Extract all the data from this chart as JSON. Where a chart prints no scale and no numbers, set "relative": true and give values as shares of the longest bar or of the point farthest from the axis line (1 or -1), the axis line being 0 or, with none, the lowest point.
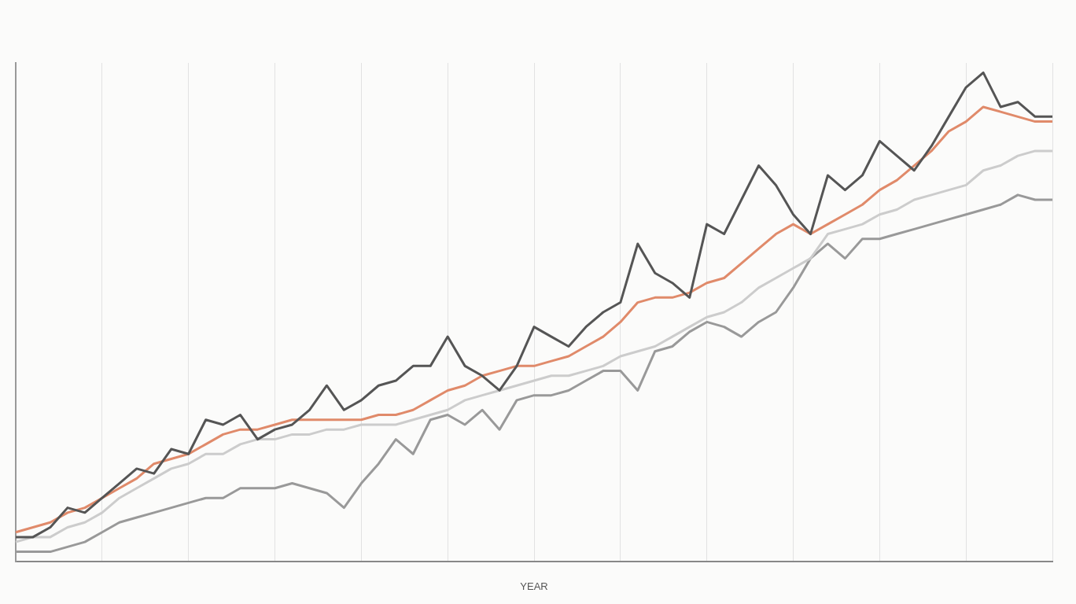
{
  "chart_data": {
    "type": "line",
    "xlabel": "YEAR",
    "relative": true,
    "grid": "x",
    "legend": false,
    "marker": "none",
    "line_style": "solid",
    "categories": [
      null,
      null,
      null,
      null,
      null,
      null,
      null,
      null,
      null,
      null,
      null,
      null,
      null,
      null,
      null,
      null,
      null,
      null,
      null,
      null,
      null,
      null,
      null,
      null,
      null,
      null,
      null,
      null,
      null,
      null,
      null,
      null,
      null,
      null,
      null,
      null,
      null,
      null,
      null,
      null,
      null,
      null,
      null,
      null,
      null,
      null,
      null,
      null,
      null,
      null,
      null,
      null,
      null,
      null,
      null,
      null,
      null,
      null,
      null,
      null,
      null
    ],
    "series": [
      {
        "color": "#555555",
        "values": [
          0.05,
          0.05,
          0.07,
          0.11,
          0.1,
          0.13,
          0.16,
          0.19,
          0.18,
          0.23,
          0.22,
          0.29,
          0.28,
          0.3,
          0.25,
          0.27,
          0.28,
          0.31,
          0.36,
          0.31,
          0.33,
          0.36,
          0.37,
          0.4,
          0.4,
          0.46,
          0.4,
          0.38,
          0.35,
          0.4,
          0.48,
          0.46,
          0.44,
          0.48,
          0.51,
          0.53,
          0.65,
          0.59,
          0.57,
          0.54,
          0.69,
          0.67,
          0.74,
          0.81,
          0.77,
          0.71,
          0.67,
          0.79,
          0.76,
          0.79,
          0.86,
          0.83,
          0.8,
          0.85,
          0.91,
          0.97,
          1.0,
          0.93,
          0.94,
          0.91,
          0.91
        ]
      },
      {
        "color": "#e08a6a",
        "values": [
          0.06,
          0.07,
          0.08,
          0.1,
          0.11,
          0.13,
          0.15,
          0.17,
          0.2,
          0.21,
          0.22,
          0.24,
          0.26,
          0.27,
          0.27,
          0.28,
          0.29,
          0.29,
          0.29,
          0.29,
          0.29,
          0.3,
          0.3,
          0.31,
          0.33,
          0.35,
          0.36,
          0.38,
          0.39,
          0.4,
          0.4,
          0.41,
          0.42,
          0.44,
          0.46,
          0.49,
          0.53,
          0.54,
          0.54,
          0.55,
          0.57,
          0.58,
          0.61,
          0.64,
          0.67,
          0.69,
          0.67,
          0.69,
          0.71,
          0.73,
          0.76,
          0.78,
          0.81,
          0.84,
          0.88,
          0.9,
          0.93,
          0.92,
          0.91,
          0.9,
          0.9
        ]
      },
      {
        "color": "#cccccc",
        "values": [
          0.04,
          0.05,
          0.05,
          0.07,
          0.08,
          0.1,
          0.13,
          0.15,
          0.17,
          0.19,
          0.2,
          0.22,
          0.22,
          0.24,
          0.25,
          0.25,
          0.26,
          0.26,
          0.27,
          0.27,
          0.28,
          0.28,
          0.28,
          0.29,
          0.3,
          0.31,
          0.33,
          0.34,
          0.35,
          0.36,
          0.37,
          0.38,
          0.38,
          0.39,
          0.4,
          0.42,
          0.43,
          0.44,
          0.46,
          0.48,
          0.5,
          0.51,
          0.53,
          0.56,
          0.58,
          0.6,
          0.62,
          0.67,
          0.68,
          0.69,
          0.71,
          0.72,
          0.74,
          0.75,
          0.76,
          0.77,
          0.8,
          0.81,
          0.83,
          0.84,
          0.84
        ]
      },
      {
        "color": "#999999",
        "values": [
          0.02,
          0.02,
          0.02,
          0.03,
          0.04,
          0.06,
          0.08,
          0.09,
          0.1,
          0.11,
          0.12,
          0.13,
          0.13,
          0.15,
          0.15,
          0.15,
          0.16,
          0.15,
          0.14,
          0.11,
          0.16,
          0.2,
          0.25,
          0.22,
          0.29,
          0.3,
          0.28,
          0.31,
          0.27,
          0.33,
          0.34,
          0.34,
          0.35,
          0.37,
          0.39,
          0.39,
          0.35,
          0.43,
          0.44,
          0.47,
          0.49,
          0.48,
          0.46,
          0.49,
          0.51,
          0.56,
          0.62,
          0.65,
          0.62,
          0.66,
          0.66,
          0.67,
          0.68,
          0.69,
          0.7,
          0.71,
          0.72,
          0.73,
          0.75,
          0.74,
          0.74
        ]
      }
    ]
  }
}
